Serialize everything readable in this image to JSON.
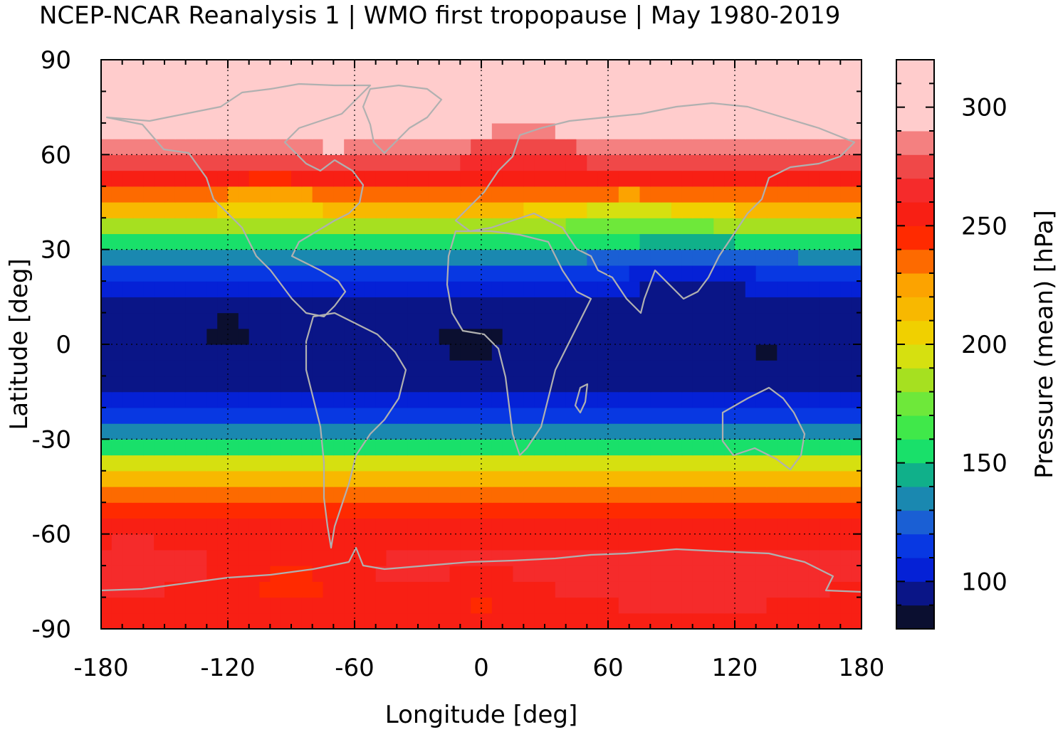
{
  "chart_data": {
    "type": "heatmap",
    "title": "NCEP-NCAR Reanalysis 1 | WMO first tropopause | May 1980-2019",
    "xlabel": "Longitude [deg]",
    "ylabel": "Latitude [deg]",
    "colorbar_label": "Pressure (mean) [hPa]",
    "xlim": [
      -180,
      180
    ],
    "ylim": [
      -90,
      90
    ],
    "x_ticks": [
      -180,
      -120,
      -60,
      0,
      60,
      120,
      180
    ],
    "y_ticks": [
      -90,
      -60,
      -30,
      0,
      30,
      60,
      90
    ],
    "x_tick_labels": [
      "-180",
      "-120",
      "-60",
      "0",
      "60",
      "120",
      "180"
    ],
    "y_tick_labels": [
      "-90",
      "-60",
      "-30",
      "0",
      "30",
      "60",
      "90"
    ],
    "colorbar_range": [
      80,
      320
    ],
    "colorbar_ticks": [
      100,
      150,
      200,
      250,
      300
    ],
    "colorbar_tick_labels": [
      "100",
      "150",
      "200",
      "250",
      "300"
    ],
    "colorbar_step": 10,
    "colormap": [
      "#0b0f30",
      "#0a1587",
      "#0521d6",
      "#0838e2",
      "#1a5fd4",
      "#1a88b0",
      "#10b08a",
      "#19e06a",
      "#40e84a",
      "#6ee83a",
      "#a6e020",
      "#d6e010",
      "#f0d000",
      "#f8b800",
      "#fca300",
      "#fd6a00",
      "#ff2a00",
      "#f81f14",
      "#f52b2b",
      "#f04848",
      "#f48080",
      "#ffcccc"
    ],
    "grid": true,
    "coastline_color": "#b0b0b0",
    "description_zonal_mean_hPa": [
      {
        "lat": 90,
        "value": 318
      },
      {
        "lat": 80,
        "value": 312
      },
      {
        "lat": 70,
        "value": 300
      },
      {
        "lat": 60,
        "value": 280
      },
      {
        "lat": 50,
        "value": 250
      },
      {
        "lat": 40,
        "value": 200
      },
      {
        "lat": 30,
        "value": 140
      },
      {
        "lat": 20,
        "value": 105
      },
      {
        "lat": 10,
        "value": 97
      },
      {
        "lat": 0,
        "value": 95
      },
      {
        "lat": -10,
        "value": 97
      },
      {
        "lat": -20,
        "value": 103
      },
      {
        "lat": -30,
        "value": 140
      },
      {
        "lat": -40,
        "value": 210
      },
      {
        "lat": -50,
        "value": 240
      },
      {
        "lat": -60,
        "value": 255
      },
      {
        "lat": -70,
        "value": 262
      },
      {
        "lat": -80,
        "value": 258
      },
      {
        "lat": -90,
        "value": 258
      }
    ]
  }
}
